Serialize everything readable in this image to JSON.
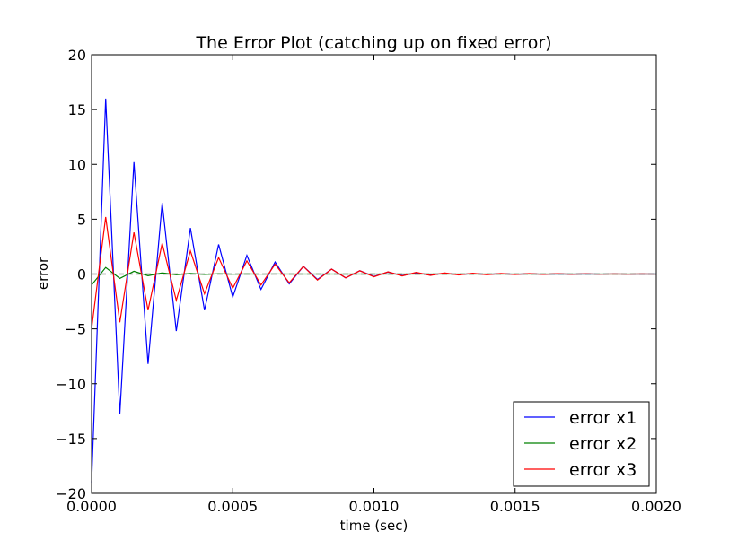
{
  "chart_data": {
    "type": "line",
    "title": "The Error Plot (catching up on fixed error)",
    "xlabel": "time (sec)",
    "ylabel": "error",
    "xlim": [
      0,
      0.002
    ],
    "ylim": [
      -20,
      20
    ],
    "xticks": [
      0,
      0.0005,
      0.001,
      0.0015,
      0.002
    ],
    "xtick_labels": [
      "0.0000",
      "0.0005",
      "0.0010",
      "0.0015",
      "0.0020"
    ],
    "yticks": [
      -20,
      -15,
      -10,
      -5,
      0,
      5,
      10,
      15,
      20
    ],
    "ytick_labels": [
      "−20",
      "−15",
      "−10",
      "−5",
      "0",
      "5",
      "10",
      "15",
      "20"
    ],
    "grid": false,
    "legend_position": "lower-right",
    "zero_line": {
      "style": "dashed",
      "color": "#000000"
    },
    "x": [
      0,
      5e-05,
      0.0001,
      0.00015,
      0.0002,
      0.00025,
      0.0003,
      0.00035,
      0.0004,
      0.00045,
      0.0005,
      0.00055,
      0.0006,
      0.00065,
      0.0007,
      0.00075,
      0.0008,
      0.00085,
      0.0009,
      0.00095,
      0.001,
      0.00105,
      0.0011,
      0.00115,
      0.0012,
      0.00125,
      0.0013,
      0.00135,
      0.0014,
      0.00145,
      0.0015,
      0.00155,
      0.0016,
      0.00165,
      0.0017,
      0.00175,
      0.0018,
      0.00185,
      0.0019,
      0.00195,
      0.002
    ],
    "series": [
      {
        "name": "error x1",
        "color": "#0000ff",
        "values": [
          -19,
          16,
          -12.8,
          10.2,
          -8.2,
          6.5,
          -5.2,
          4.2,
          -3.3,
          2.7,
          -2.1,
          1.7,
          -1.4,
          1.1,
          -0.9,
          0.7,
          -0.5,
          0.45,
          -0.35,
          0.3,
          -0.22,
          0.18,
          -0.14,
          0.11,
          -0.09,
          0.07,
          -0.05,
          0.04,
          -0.03,
          0.03,
          -0.02,
          0.02,
          -0.015,
          0.01,
          -0.01,
          0.01,
          -0.005,
          0.005,
          -0.003,
          0.002,
          -0.002
        ]
      },
      {
        "name": "error x2",
        "color": "#008000",
        "values": [
          -1,
          0.6,
          -0.4,
          0.25,
          -0.15,
          0.1,
          -0.06,
          0.05,
          -0.03,
          0.02,
          -0.01,
          0.01,
          -0.005,
          0.005,
          0,
          0,
          0,
          0,
          0,
          0,
          0,
          0,
          0,
          0,
          0,
          0,
          0,
          0,
          0,
          0,
          0,
          0,
          0,
          0,
          0,
          0,
          0,
          0,
          0,
          0,
          0
        ]
      },
      {
        "name": "error x3",
        "color": "#ff0000",
        "values": [
          -5,
          5.2,
          -4.4,
          3.8,
          -3.3,
          2.8,
          -2.4,
          2.1,
          -1.8,
          1.5,
          -1.3,
          1.2,
          -1,
          0.9,
          -0.8,
          0.7,
          -0.55,
          0.45,
          -0.35,
          0.3,
          -0.25,
          0.2,
          -0.17,
          0.15,
          -0.12,
          0.1,
          -0.08,
          0.07,
          -0.06,
          0.05,
          -0.04,
          0.04,
          -0.03,
          0.03,
          -0.02,
          0.02,
          -0.015,
          0.01,
          -0.01,
          0.01,
          -0.005
        ]
      }
    ]
  }
}
